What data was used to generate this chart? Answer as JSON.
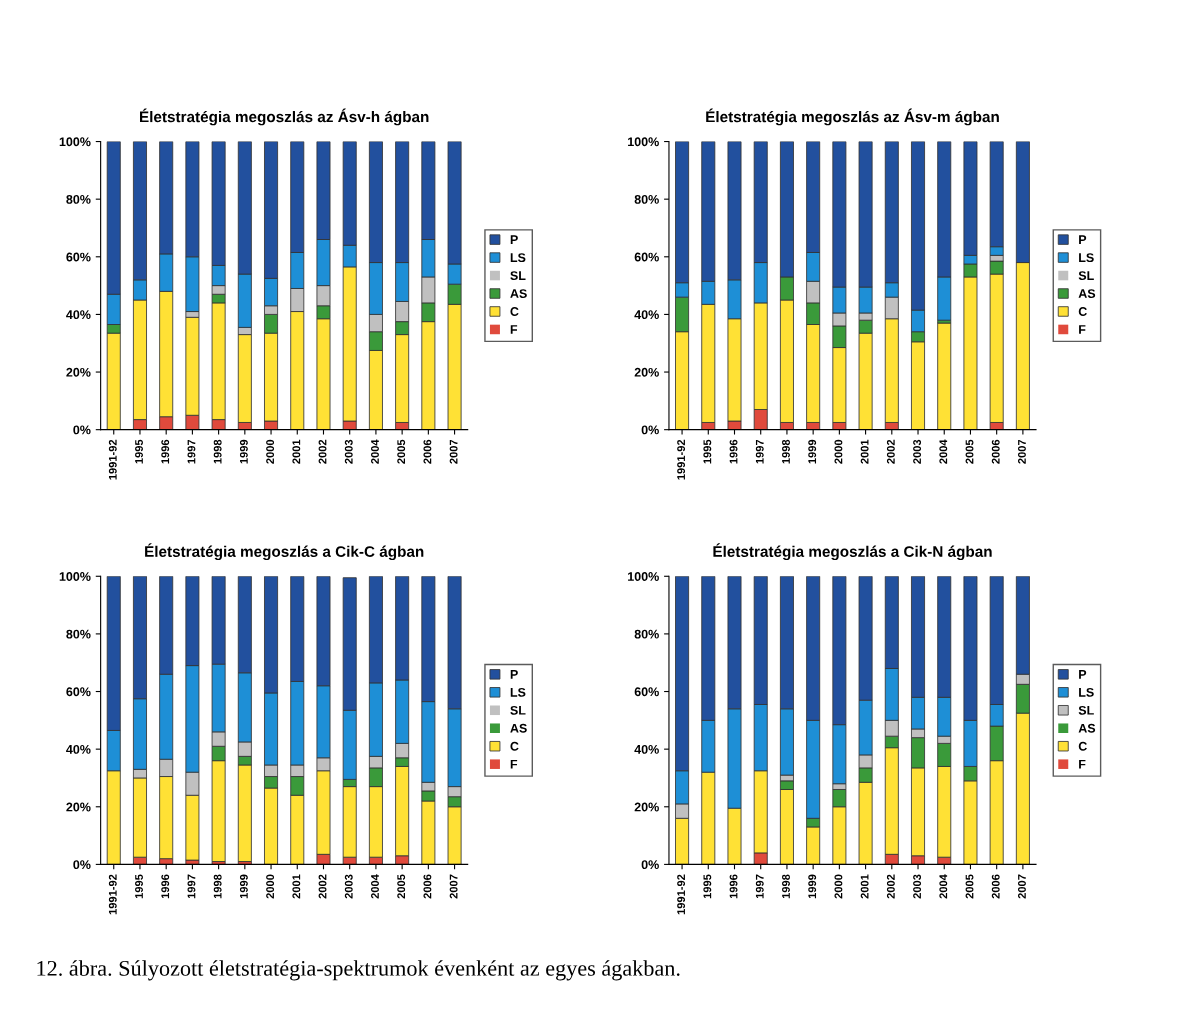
{
  "chart_data": [
    {
      "type": "bar",
      "stacked": true,
      "title": "Életstratégia megoszlás az Ásv-h ágban",
      "categories": [
        "1991-92",
        "1995",
        "1996",
        "1997",
        "1998",
        "1999",
        "2000",
        "2001",
        "2002",
        "2003",
        "2004",
        "2005",
        "2006",
        "2007"
      ],
      "ylim": [
        0,
        100
      ],
      "yticks": [
        {
          "value": 0,
          "label": "0%"
        },
        {
          "value": 20,
          "label": "20%"
        },
        {
          "value": 40,
          "label": "40%"
        },
        {
          "value": 60,
          "label": "60%"
        },
        {
          "value": 80,
          "label": "80%"
        },
        {
          "value": 100,
          "label": "100%"
        }
      ],
      "grid": false,
      "legend": "right",
      "series": [
        {
          "name": "F",
          "color": "#e04a3c",
          "values": [
            0,
            3.5,
            4.5,
            5,
            3.5,
            2.5,
            3,
            0,
            0,
            3,
            0,
            2.5,
            0,
            0
          ]
        },
        {
          "name": "C",
          "color": "#ffe135",
          "values": [
            33.5,
            41.5,
            43.5,
            34,
            40.5,
            30.5,
            30.5,
            41,
            38.5,
            53.5,
            27.5,
            30.5,
            37.5,
            43.5
          ]
        },
        {
          "name": "AS",
          "color": "#3a9a3a",
          "values": [
            3,
            0,
            0,
            0,
            3,
            0,
            6.5,
            0,
            4.5,
            0,
            6.5,
            4.5,
            6.5,
            7
          ]
        },
        {
          "name": "SL",
          "color": "#c0c0c0",
          "values": [
            0,
            0,
            0,
            2,
            3,
            2.5,
            3,
            8,
            7,
            0,
            6,
            7,
            9,
            0
          ]
        },
        {
          "name": "LS",
          "color": "#1e8fd6",
          "values": [
            10.5,
            7,
            13,
            19,
            7,
            18.5,
            9.5,
            12.5,
            16,
            7.5,
            18,
            13.5,
            13,
            7
          ]
        },
        {
          "name": "P",
          "color": "#22509e",
          "values": [
            53,
            48,
            39,
            40,
            43,
            46,
            47.5,
            38.5,
            34,
            36,
            42,
            42,
            34,
            42.5
          ]
        }
      ]
    },
    {
      "type": "bar",
      "stacked": true,
      "title": "Életstratégia megoszlás az Ásv-m ágban",
      "categories": [
        "1991-92",
        "1995",
        "1996",
        "1997",
        "1998",
        "1999",
        "2000",
        "2001",
        "2002",
        "2003",
        "2004",
        "2005",
        "2006",
        "2007"
      ],
      "ylim": [
        0,
        100
      ],
      "yticks": [
        {
          "value": 0,
          "label": "0%"
        },
        {
          "value": 20,
          "label": "20%"
        },
        {
          "value": 40,
          "label": "40%"
        },
        {
          "value": 60,
          "label": "60%"
        },
        {
          "value": 80,
          "label": "80%"
        },
        {
          "value": 100,
          "label": "100%"
        }
      ],
      "grid": false,
      "legend": "right",
      "series": [
        {
          "name": "F",
          "color": "#e04a3c",
          "values": [
            0,
            2.5,
            3,
            7,
            2.5,
            2.5,
            2.5,
            0,
            2.5,
            0,
            0,
            0,
            2.5,
            0
          ]
        },
        {
          "name": "C",
          "color": "#ffe135",
          "values": [
            34,
            41,
            35.5,
            37,
            42.5,
            34,
            26,
            33.5,
            36,
            30.5,
            37,
            53,
            51.5,
            58
          ]
        },
        {
          "name": "AS",
          "color": "#3a9a3a",
          "values": [
            12,
            0,
            0,
            0,
            8,
            7.5,
            7.5,
            4.5,
            0,
            3.5,
            1,
            4.5,
            4.5,
            0
          ]
        },
        {
          "name": "SL",
          "color": "#c0c0c0",
          "values": [
            0,
            0,
            0,
            0,
            0,
            7.5,
            4.5,
            2.5,
            7.5,
            0,
            0,
            0,
            2,
            0
          ]
        },
        {
          "name": "LS",
          "color": "#1e8fd6",
          "values": [
            5,
            8,
            13.5,
            14,
            0,
            10,
            9,
            9,
            5,
            7.5,
            15,
            3,
            3,
            0
          ]
        },
        {
          "name": "P",
          "color": "#22509e",
          "values": [
            49,
            48.5,
            48,
            42,
            47,
            38.5,
            50.5,
            50.5,
            49,
            58.5,
            47,
            39.5,
            36.5,
            42
          ]
        }
      ]
    },
    {
      "type": "bar",
      "stacked": true,
      "title": "Életstratégia megoszlás a Cik-C ágban",
      "categories": [
        "1991-92",
        "1995",
        "1996",
        "1997",
        "1998",
        "1999",
        "2000",
        "2001",
        "2002",
        "2003",
        "2004",
        "2005",
        "2006",
        "2007"
      ],
      "ylim": [
        0,
        100
      ],
      "yticks": [
        {
          "value": 0,
          "label": "0%"
        },
        {
          "value": 20,
          "label": "20%"
        },
        {
          "value": 40,
          "label": "40%"
        },
        {
          "value": 60,
          "label": "60%"
        },
        {
          "value": 80,
          "label": "80%"
        },
        {
          "value": 100,
          "label": "100%"
        }
      ],
      "grid": false,
      "legend": "right",
      "series": [
        {
          "name": "F",
          "color": "#e04a3c",
          "values": [
            0,
            2.5,
            2,
            1.5,
            1,
            1,
            0,
            0,
            3.5,
            2.5,
            2.5,
            3,
            0,
            0
          ]
        },
        {
          "name": "C",
          "color": "#ffe135",
          "values": [
            32.5,
            27.5,
            28.5,
            22.5,
            35,
            33.5,
            26.5,
            24,
            29,
            24.5,
            24.5,
            31,
            22,
            20
          ]
        },
        {
          "name": "AS",
          "color": "#3a9a3a",
          "values": [
            0,
            0,
            0,
            0,
            5,
            3,
            4,
            6.5,
            0,
            2.5,
            6.5,
            3,
            3.5,
            3.5
          ]
        },
        {
          "name": "SL",
          "color": "#c0c0c0",
          "values": [
            0,
            3,
            6,
            8,
            5,
            5,
            4,
            4,
            4.5,
            null,
            4,
            5,
            3,
            3.5
          ]
        },
        {
          "name": "LS",
          "color": "#1e8fd6",
          "values": [
            14,
            24.5,
            29.5,
            37,
            23.5,
            24,
            25,
            29,
            25,
            24,
            25.5,
            22,
            28,
            27
          ]
        },
        {
          "name": "P",
          "color": "#22509e",
          "values": [
            53.5,
            42.5,
            34,
            31,
            30.5,
            33.5,
            40.5,
            36.5,
            38,
            46,
            37,
            36,
            43.5,
            46
          ]
        }
      ]
    },
    {
      "type": "bar",
      "stacked": true,
      "title": "Életstratégia megoszlás a Cik-N ágban",
      "categories": [
        "1991-92",
        "1995",
        "1996",
        "1997",
        "1998",
        "1999",
        "2000",
        "2001",
        "2002",
        "2003",
        "2004",
        "2005",
        "2006",
        "2007"
      ],
      "ylim": [
        0,
        100
      ],
      "yticks": [
        {
          "value": 0,
          "label": "0%"
        },
        {
          "value": 20,
          "label": "20%"
        },
        {
          "value": 40,
          "label": "40%"
        },
        {
          "value": 60,
          "label": "60%"
        },
        {
          "value": 80,
          "label": "80%"
        },
        {
          "value": 100,
          "label": "100%"
        }
      ],
      "grid": false,
      "legend": "right",
      "annotations": [
        "12. ábra. Súlyozott életstratégia-spektrumok évenként az egyes ágakban."
      ],
      "series": [
        {
          "name": "F",
          "color": "#e04a3c",
          "values": [
            0,
            0,
            0,
            4,
            0,
            0,
            0,
            0,
            3.5,
            3,
            2.5,
            0,
            0,
            0
          ]
        },
        {
          "name": "C",
          "color": "#ffe135",
          "values": [
            16,
            32,
            19.5,
            28.5,
            26,
            13,
            20,
            28.5,
            37,
            30.5,
            31.5,
            29,
            36,
            52.5
          ]
        },
        {
          "name": "AS",
          "color": "#3a9a3a",
          "values": [
            0,
            0,
            0,
            0,
            3,
            3,
            6,
            5,
            4,
            10.5,
            8,
            5,
            12,
            10
          ]
        },
        {
          "name": "SL",
          "color": "#c0c0c0",
          "values": [
            5,
            0,
            0,
            0,
            2,
            0,
            2,
            4.5,
            5.5,
            3,
            2.5,
            0,
            0,
            3.5
          ]
        },
        {
          "name": "LS",
          "color": "#1e8fd6",
          "values": [
            11.5,
            18,
            34.5,
            23,
            23,
            34,
            20.5,
            19,
            18,
            11,
            13.5,
            16,
            7.5,
            0
          ]
        },
        {
          "name": "P",
          "color": "#22509e",
          "values": [
            67.5,
            50,
            46,
            44.5,
            46,
            50,
            51.5,
            43,
            32,
            42,
            42,
            50,
            44.5,
            34
          ]
        }
      ]
    }
  ]
}
